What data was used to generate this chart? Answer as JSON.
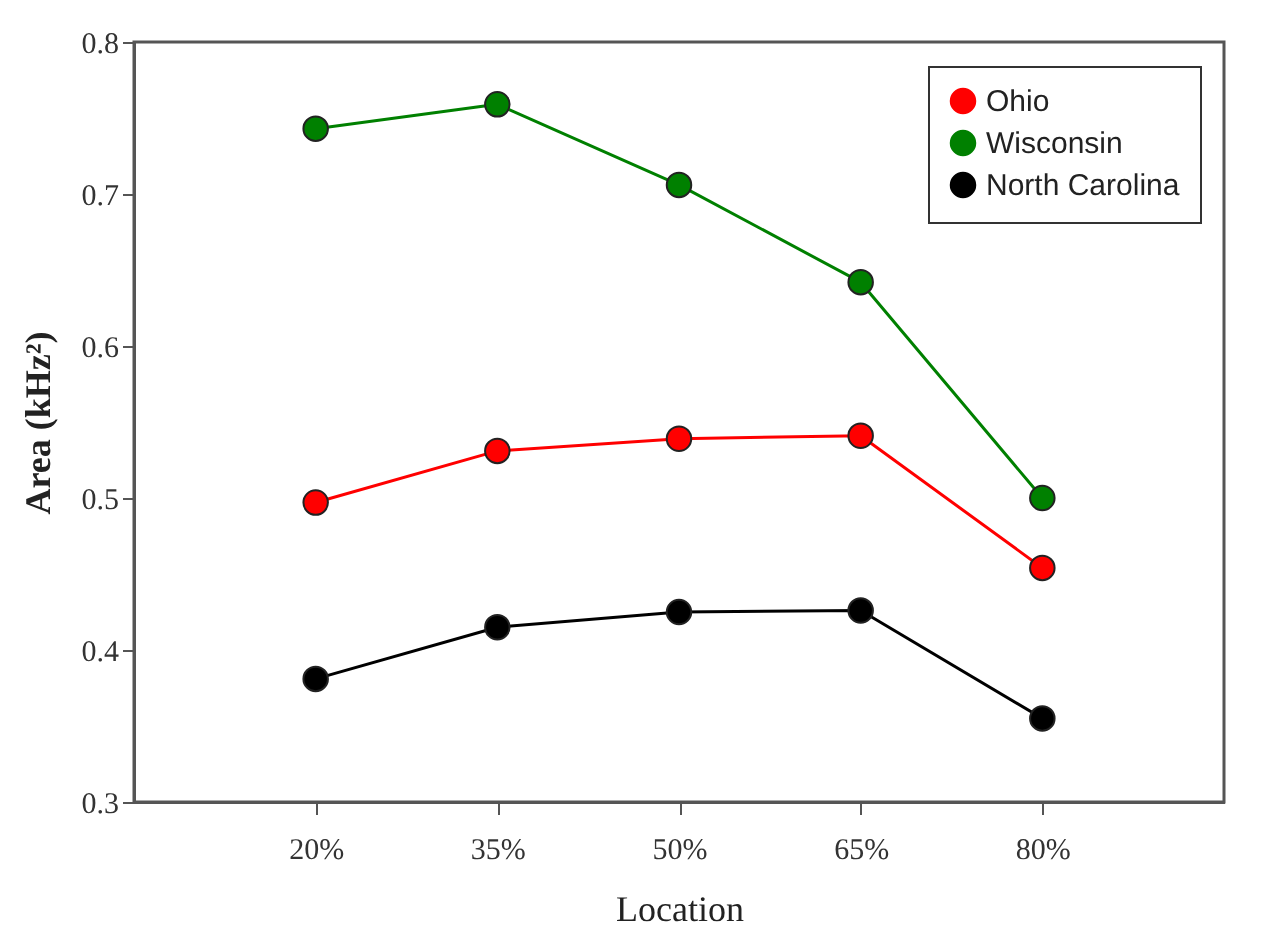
{
  "chart_data": {
    "type": "line",
    "xlabel": "Location",
    "ylabel": "Area (kHz²)",
    "x": [
      20,
      35,
      50,
      65,
      80
    ],
    "xlim": [
      5,
      95
    ],
    "xticks": [
      {
        "value": 20,
        "label": "20%"
      },
      {
        "value": 35,
        "label": "35%"
      },
      {
        "value": 50,
        "label": "50%"
      },
      {
        "value": 65,
        "label": "65%"
      },
      {
        "value": 80,
        "label": "80%"
      }
    ],
    "ylim": [
      0.3,
      0.8
    ],
    "yticks": [
      0.3,
      0.4,
      0.5,
      0.6,
      0.7,
      0.8
    ],
    "series": [
      {
        "name": "Ohio",
        "color": "#ff0000",
        "values": [
          0.497,
          0.531,
          0.539,
          0.541,
          0.454
        ]
      },
      {
        "name": "Wisconsin",
        "color": "#008000",
        "values": [
          0.743,
          0.759,
          0.706,
          0.642,
          0.5
        ]
      },
      {
        "name": "North Carolina",
        "color": "#000000",
        "values": [
          0.381,
          0.415,
          0.425,
          0.426,
          0.355
        ]
      }
    ],
    "marker": "circle",
    "grid": false,
    "legend": "top right"
  }
}
